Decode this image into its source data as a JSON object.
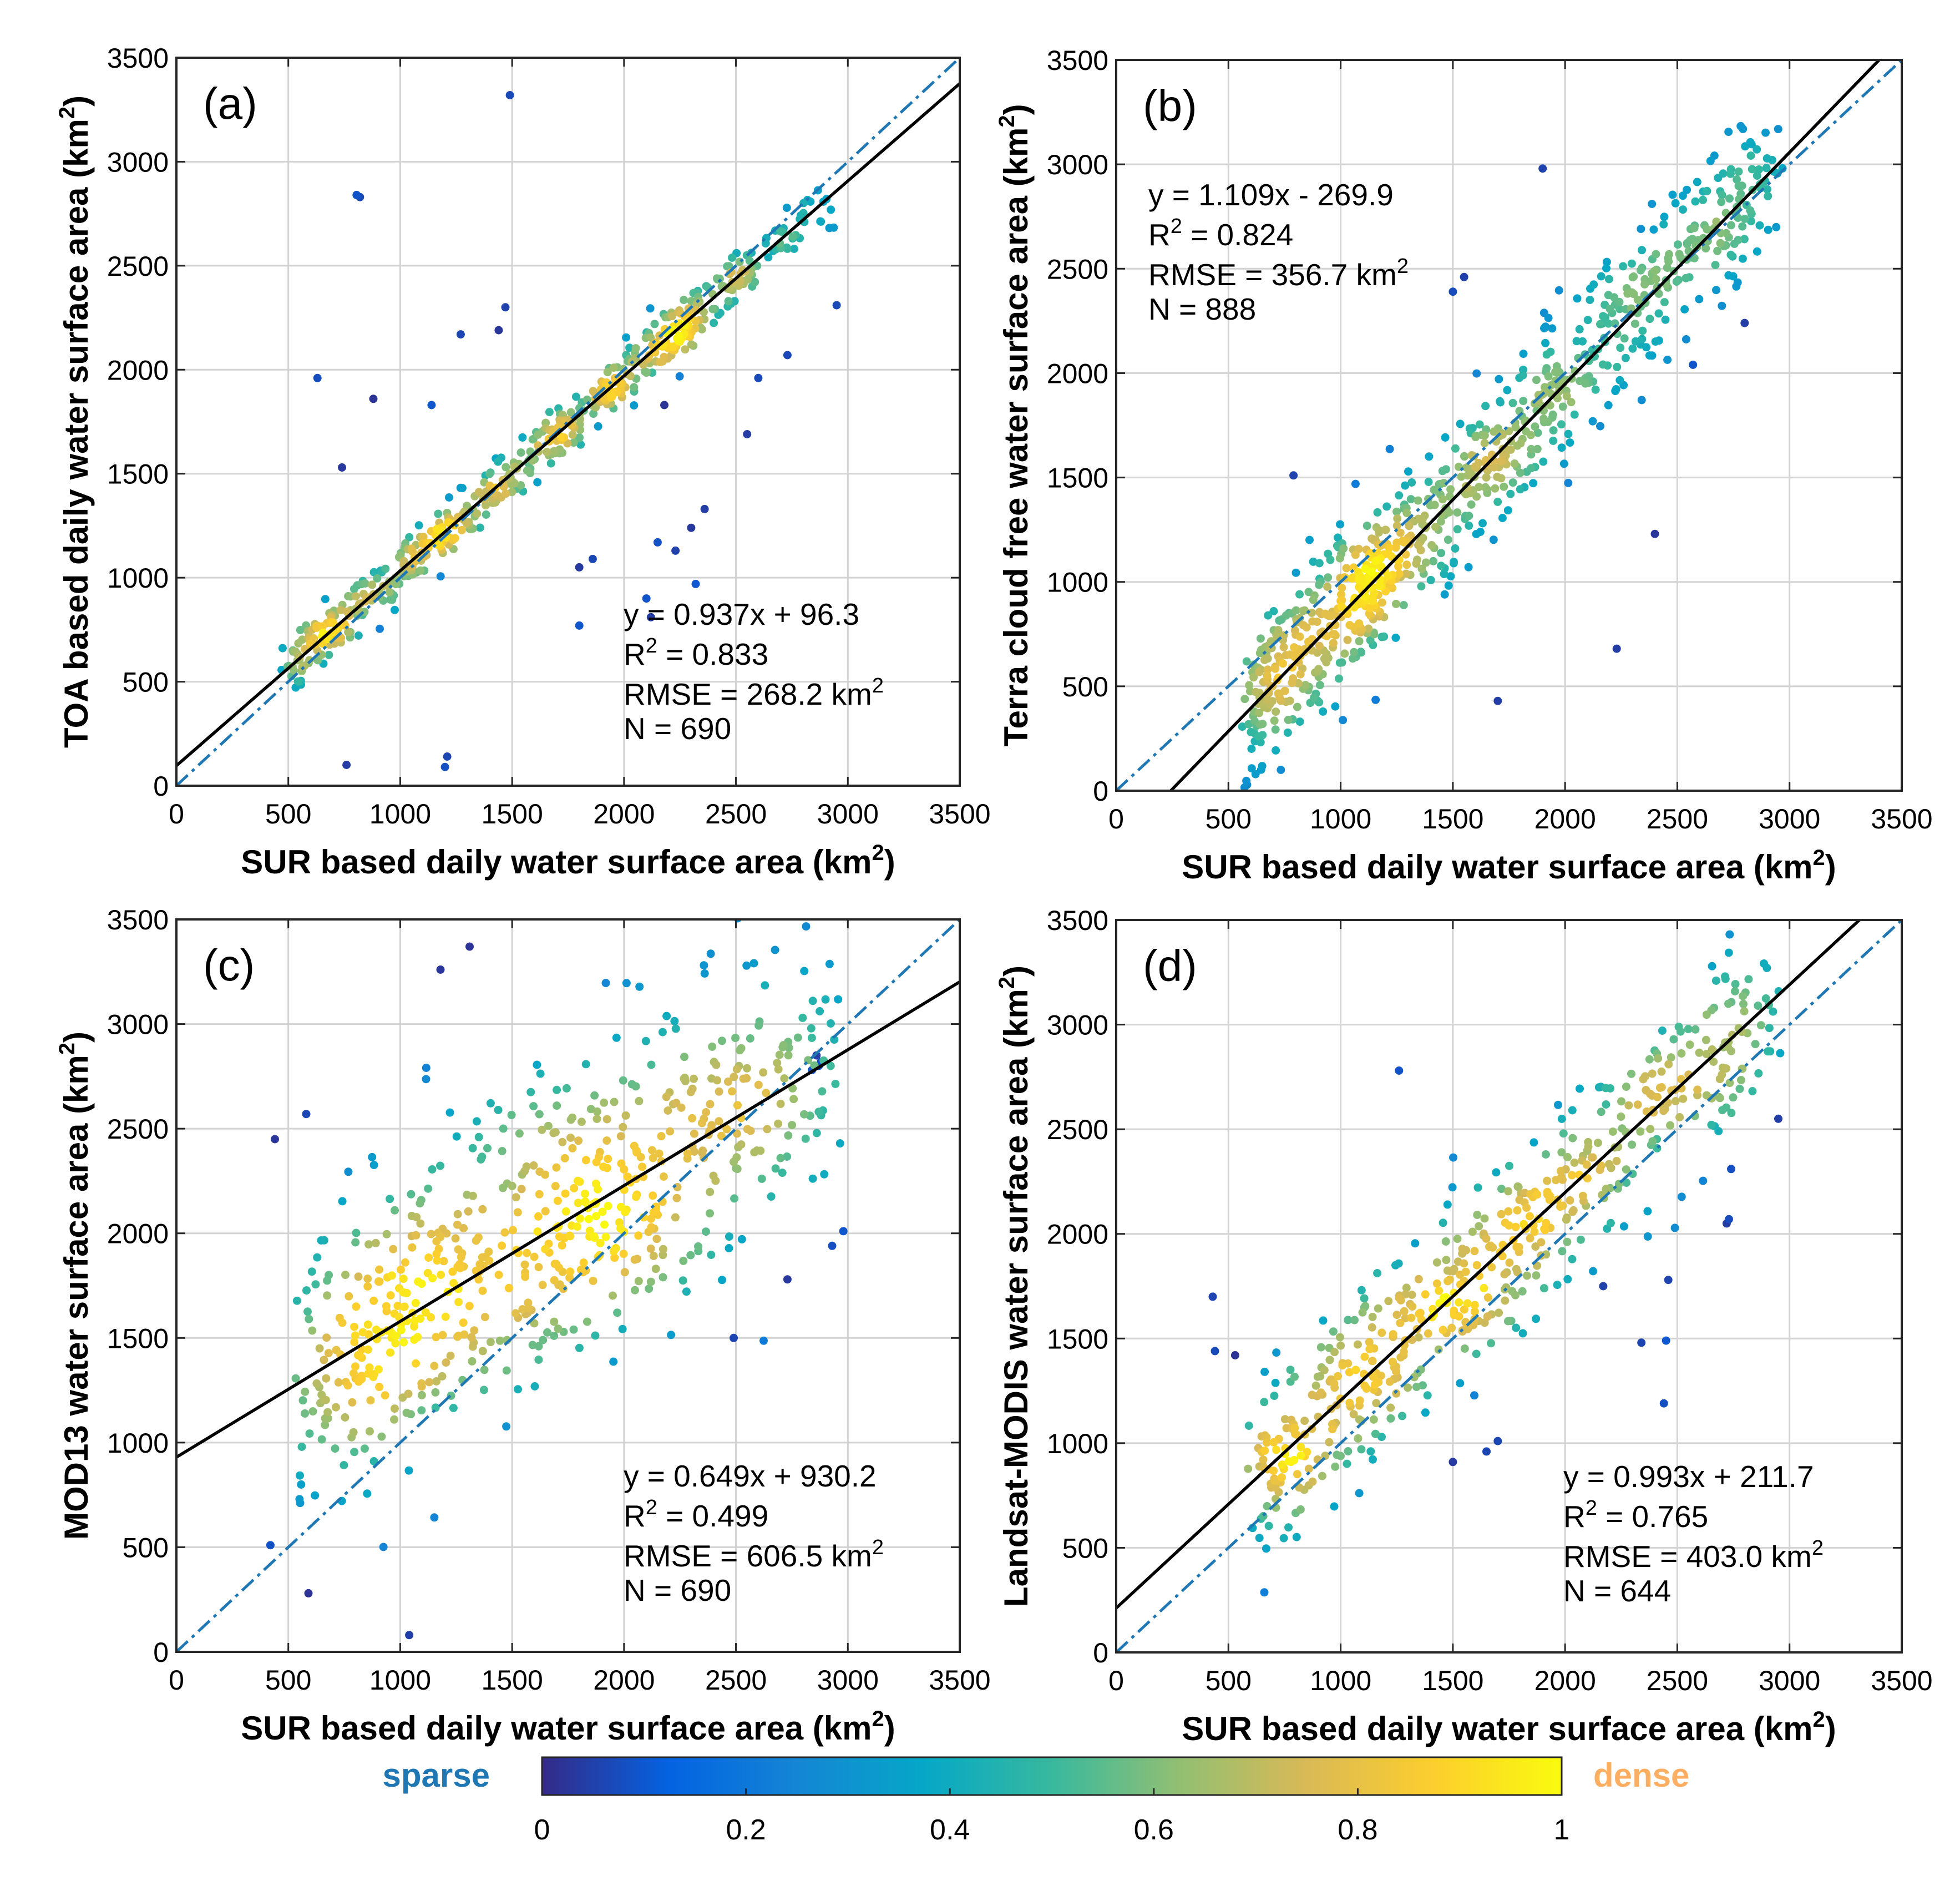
{
  "colors": {
    "axis": "#262626",
    "grid": "#d3d3d3",
    "fit_line": "#000000",
    "one_to_one_line": "#1f77b4",
    "sparse_label": "#1f77b4",
    "dense_label": "#fdae61",
    "colormap": [
      "#352a87",
      "#0363e1",
      "#1485d4",
      "#06a7c6",
      "#38b99e",
      "#92bf73",
      "#d9ba56",
      "#fcce2e",
      "#f9fb0e"
    ]
  },
  "chart_data": [
    {
      "id": "a",
      "type": "scatter",
      "panel_label": "(a)",
      "xlabel": "SUR based daily water surface area (km",
      "xlabel_sup": "2",
      "xlabel_end": ")",
      "ylabel": "TOA based daily water surface area (km",
      "ylabel_sup": "2",
      "ylabel_end": ")",
      "xlim": [
        0,
        3500
      ],
      "ylim": [
        0,
        3500
      ],
      "xticks": [
        0,
        500,
        1000,
        1500,
        2000,
        2500,
        3000,
        3500
      ],
      "yticks": [
        0,
        500,
        1000,
        1500,
        2000,
        2500,
        3000,
        3500
      ],
      "xtick_labels": [
        "0",
        "500",
        "1000",
        "1500",
        "2000",
        "2500",
        "3000",
        "3500"
      ],
      "ytick_labels": [
        "0",
        "500",
        "1000",
        "1500",
        "2000",
        "2500",
        "3000",
        "3500"
      ],
      "fit": {
        "slope": 0.937,
        "intercept": 96.3
      },
      "stats": {
        "equation": "y = 0.937x + 96.3",
        "r2_prefix": "R",
        "r2_sup": "2",
        "r2_value": " = 0.833",
        "rmse": "RMSE = 268.2 km",
        "rmse_sup": "2",
        "n": "N = 690"
      },
      "stats_position": "bottom-right",
      "cloud": {
        "spread": 65,
        "seed": 11,
        "segments": [
          {
            "x0": 500,
            "x1": 1000,
            "n": 140
          },
          {
            "x0": 1000,
            "x1": 2300,
            "n": 340
          },
          {
            "x0": 2200,
            "x1": 2500,
            "n": 70
          },
          {
            "x0": 2500,
            "x1": 2920,
            "n": 55
          }
        ]
      },
      "outliers": [
        [
          1490,
          3320
        ],
        [
          805,
          2840
        ],
        [
          820,
          2830
        ],
        [
          630,
          1960
        ],
        [
          880,
          1860
        ],
        [
          1470,
          2300
        ],
        [
          1270,
          2170
        ],
        [
          1440,
          2190
        ],
        [
          740,
          1530
        ],
        [
          1800,
          1050
        ],
        [
          1860,
          1090
        ],
        [
          2150,
          1170
        ],
        [
          2230,
          1130
        ],
        [
          2300,
          1240
        ],
        [
          2360,
          1330
        ],
        [
          2100,
          900
        ],
        [
          2320,
          970
        ],
        [
          2120,
          810
        ],
        [
          1800,
          770
        ],
        [
          760,
          100
        ],
        [
          1200,
          90
        ],
        [
          1210,
          140
        ],
        [
          2550,
          1690
        ],
        [
          2950,
          2310
        ],
        [
          2180,
          1830
        ],
        [
          1140,
          1830
        ],
        [
          2600,
          1960
        ],
        [
          2730,
          2070
        ]
      ]
    },
    {
      "id": "b",
      "type": "scatter",
      "panel_label": "(b)",
      "xlabel": "SUR based daily water surface area (km",
      "xlabel_sup": "2",
      "xlabel_end": ")",
      "ylabel": "Terra cloud free water surface area (km",
      "ylabel_sup": "2",
      "ylabel_end": ")",
      "xlim": [
        0,
        3500
      ],
      "ylim": [
        0,
        3500
      ],
      "xticks": [
        0,
        500,
        1000,
        1500,
        2000,
        2500,
        3000,
        3500
      ],
      "yticks": [
        0,
        500,
        1000,
        1500,
        2000,
        2500,
        3000,
        3500
      ],
      "xtick_labels": [
        "0",
        "500",
        "1000",
        "1500",
        "2000",
        "2500",
        "3000",
        "3500"
      ],
      "ytick_labels": [
        "0",
        "500",
        "1000",
        "1500",
        "2000",
        "2500",
        "3000",
        "3500"
      ],
      "fit": {
        "slope": 1.109,
        "intercept": -269.9
      },
      "stats": {
        "equation": "y = 1.109x - 269.9",
        "r2_prefix": "R",
        "r2_sup": "2",
        "r2_value": " = 0.824",
        "rmse": "RMSE = 356.7 km",
        "rmse_sup": "2",
        "n": "N = 888"
      },
      "stats_position": "top-left",
      "cloud": {
        "spread": 180,
        "seed": 23,
        "segments": [
          {
            "x0": 600,
            "x1": 1200,
            "n": 330
          },
          {
            "x0": 1150,
            "x1": 2000,
            "n": 300
          },
          {
            "x0": 2000,
            "x1": 2600,
            "n": 160
          },
          {
            "x0": 2600,
            "x1": 2950,
            "n": 90
          }
        ]
      },
      "outliers": [
        [
          1900,
          2980
        ],
        [
          1550,
          2460
        ],
        [
          1500,
          2390
        ],
        [
          790,
          1510
        ],
        [
          2230,
          680
        ],
        [
          1700,
          430
        ],
        [
          2570,
          2040
        ],
        [
          2800,
          2240
        ],
        [
          2400,
          1230
        ]
      ]
    },
    {
      "id": "c",
      "type": "scatter",
      "panel_label": "(c)",
      "xlabel": "SUR based daily water surface area (km",
      "xlabel_sup": "2",
      "xlabel_end": ")",
      "ylabel": "MOD13 water surface area (km",
      "ylabel_sup": "2",
      "ylabel_end": ")",
      "xlim": [
        0,
        3500
      ],
      "ylim": [
        0,
        3500
      ],
      "xticks": [
        0,
        500,
        1000,
        1500,
        2000,
        2500,
        3000,
        3500
      ],
      "yticks": [
        0,
        500,
        1000,
        1500,
        2000,
        2500,
        3000,
        3500
      ],
      "xtick_labels": [
        "0",
        "500",
        "1000",
        "1500",
        "2000",
        "2500",
        "3000",
        "3500"
      ],
      "ytick_labels": [
        "0",
        "500",
        "1000",
        "1500",
        "2000",
        "2500",
        "3000",
        "3500"
      ],
      "fit": {
        "slope": 0.649,
        "intercept": 930.2
      },
      "stats": {
        "equation": "y = 0.649x + 930.2",
        "r2_prefix": "R",
        "r2_sup": "2",
        "r2_value": " = 0.499",
        "rmse": "RMSE = 606.5 km",
        "rmse_sup": "2",
        "n": "N = 690"
      },
      "stats_position": "bottom-right",
      "cloud": {
        "spread": 360,
        "seed": 37,
        "segments": [
          {
            "x0": 550,
            "x1": 1300,
            "n": 230
          },
          {
            "x0": 1300,
            "x1": 2300,
            "n": 290
          },
          {
            "x0": 2300,
            "x1": 2950,
            "n": 130
          }
        ]
      },
      "outliers": [
        [
          1310,
          3370
        ],
        [
          1180,
          3260
        ],
        [
          440,
          2450
        ],
        [
          580,
          2570
        ],
        [
          590,
          280
        ],
        [
          1040,
          80
        ],
        [
          420,
          510
        ],
        [
          2490,
          1500
        ],
        [
          2980,
          2010
        ],
        [
          2930,
          1940
        ],
        [
          2730,
          1780
        ],
        [
          2870,
          2800
        ],
        [
          2860,
          2850
        ],
        [
          2840,
          2780
        ],
        [
          2880,
          2820
        ]
      ]
    },
    {
      "id": "d",
      "type": "scatter",
      "panel_label": "(d)",
      "xlabel": "SUR based daily water surface area (km",
      "xlabel_sup": "2",
      "xlabel_end": ")",
      "ylabel": "Landsat-MODIS water surface area (km",
      "ylabel_sup": "2",
      "ylabel_end": ")",
      "xlim": [
        0,
        3500
      ],
      "ylim": [
        0,
        3500
      ],
      "xticks": [
        0,
        500,
        1000,
        1500,
        2000,
        2500,
        3000,
        3500
      ],
      "yticks": [
        0,
        500,
        1000,
        1500,
        2000,
        2500,
        3000,
        3500
      ],
      "xtick_labels": [
        "0",
        "500",
        "1000",
        "1500",
        "2000",
        "2500",
        "3000",
        "3500"
      ],
      "ytick_labels": [
        "0",
        "500",
        "1000",
        "1500",
        "2000",
        "2500",
        "3000",
        "3500"
      ],
      "fit": {
        "slope": 0.993,
        "intercept": 211.7
      },
      "stats": {
        "equation": "y = 0.993x + 211.7",
        "r2_prefix": "R",
        "r2_sup": "2",
        "r2_value": " = 0.765",
        "rmse": "RMSE = 403.0 km",
        "rmse_sup": "2",
        "n": "N = 644"
      },
      "stats_position": "bottom-right",
      "cloud": {
        "spread": 210,
        "seed": 53,
        "segments": [
          {
            "x0": 600,
            "x1": 1200,
            "n": 170
          },
          {
            "x0": 1200,
            "x1": 2200,
            "n": 260
          },
          {
            "x0": 2200,
            "x1": 2950,
            "n": 150
          }
        ]
      },
      "outliers": [
        [
          1260,
          2780
        ],
        [
          430,
          1700
        ],
        [
          440,
          1440
        ],
        [
          530,
          1420
        ],
        [
          2440,
          1190
        ],
        [
          2340,
          1480
        ],
        [
          2450,
          1490
        ],
        [
          2950,
          2550
        ],
        [
          2730,
          2070
        ],
        [
          2720,
          2050
        ],
        [
          2740,
          2310
        ],
        [
          1500,
          910
        ],
        [
          1650,
          960
        ],
        [
          1700,
          1010
        ],
        [
          2460,
          1780
        ],
        [
          2170,
          1750
        ]
      ]
    }
  ],
  "colorbar": {
    "ticks": [
      0,
      0.2,
      0.4,
      0.6,
      0.8,
      1
    ],
    "tick_labels": [
      "0",
      "0.2",
      "0.4",
      "0.6",
      "0.8",
      "1"
    ],
    "range": [
      0,
      1
    ],
    "left_label": "sparse",
    "right_label": "dense"
  }
}
